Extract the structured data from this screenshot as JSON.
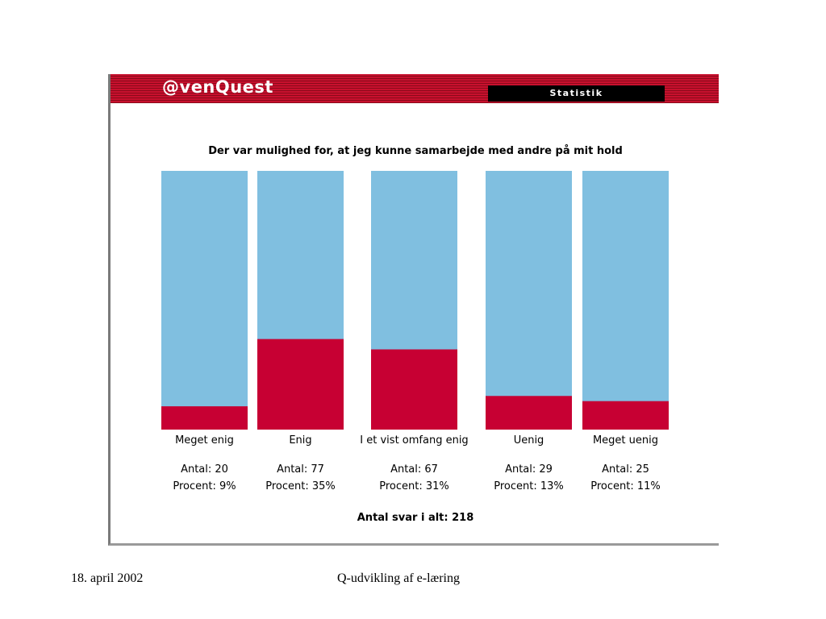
{
  "app": {
    "logo": "@venQuest",
    "section_label": "Statistik",
    "colors": {
      "banner": "#c8102e",
      "bar_bg": "#80bfe0",
      "bar_fill": "#c70033"
    }
  },
  "chart_data": {
    "type": "bar",
    "title": "Der var mulighed for, at jeg kunne samarbejde med andre på mit hold",
    "categories": [
      "Meget enig",
      "Enig",
      "I et vist omfang enig",
      "Uenig",
      "Meget uenig"
    ],
    "counts": [
      20,
      77,
      67,
      29,
      25
    ],
    "count_labels": [
      "Antal: 20",
      "Antal: 77",
      "Antal: 67",
      "Antal: 29",
      "Antal: 25"
    ],
    "percent_labels": [
      "Procent: 9%",
      "Procent: 35%",
      "Procent: 31%",
      "Procent: 13%",
      "Procent: 11%"
    ],
    "values": [
      9,
      35,
      31,
      13,
      11
    ],
    "ylim": [
      0,
      100
    ],
    "total_label": "Antal svar i alt: 218"
  },
  "footer": {
    "date": "18. april 2002",
    "title": "Q-udvikling af e-læring"
  }
}
